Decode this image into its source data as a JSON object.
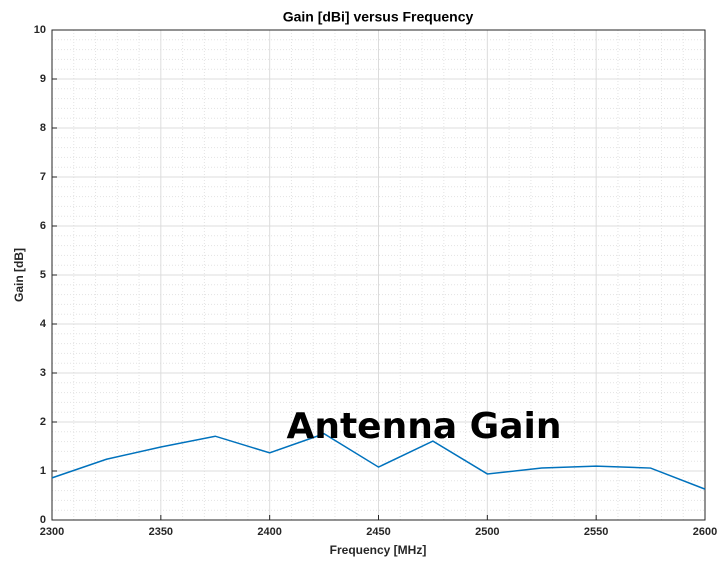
{
  "chart_data": {
    "type": "line",
    "title": "Gain [dBi] versus Frequency",
    "xlabel": "Frequency [MHz]",
    "ylabel": "Gain [dB]",
    "annotation": "Antenna Gain",
    "x": [
      2300,
      2325,
      2350,
      2375,
      2400,
      2425,
      2450,
      2475,
      2500,
      2525,
      2550,
      2575,
      2600
    ],
    "series": [
      {
        "name": "Gain",
        "color": "#0072bd",
        "values": [
          0.86,
          1.24,
          1.49,
          1.71,
          1.37,
          1.76,
          1.08,
          1.61,
          0.94,
          1.06,
          1.1,
          1.06,
          0.63
        ]
      }
    ],
    "xlim": [
      2300,
      2600
    ],
    "xticks": [
      2300,
      2350,
      2400,
      2450,
      2500,
      2550,
      2600
    ],
    "ylim": [
      0,
      10
    ],
    "yticks": [
      0,
      1,
      2,
      3,
      4,
      5,
      6,
      7,
      8,
      9,
      10
    ],
    "grid": true,
    "minor_grid": true
  }
}
